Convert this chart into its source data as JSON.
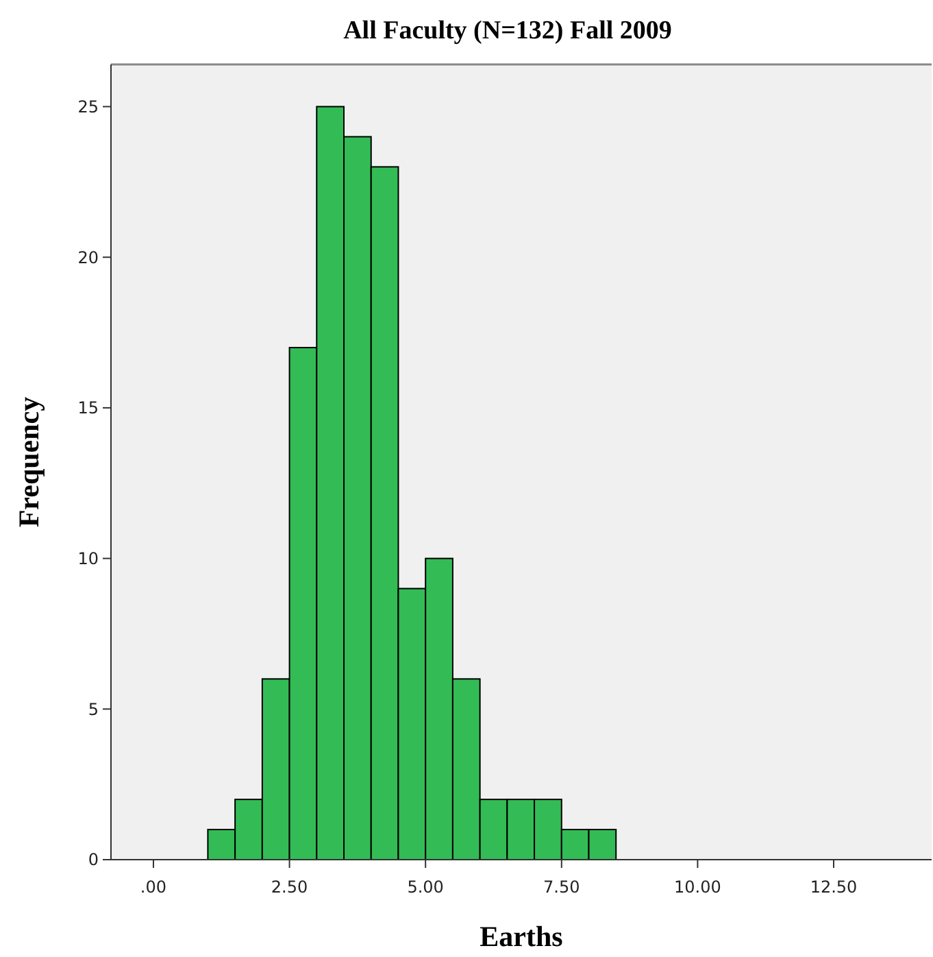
{
  "chart_data": {
    "type": "histogram",
    "title": "All Faculty (N=132) Fall 2009",
    "xlabel": "Earths",
    "ylabel": "Frequency",
    "bins": [
      1.0,
      1.5,
      2.0,
      2.5,
      3.0,
      3.5,
      4.0,
      4.5,
      5.0,
      5.5,
      6.0,
      6.5,
      7.0,
      7.5,
      8.0,
      8.5
    ],
    "values": [
      1,
      2,
      6,
      17,
      25,
      24,
      23,
      9,
      10,
      6,
      2,
      2,
      2,
      1,
      1
    ],
    "color": "#33bc56",
    "xlim": [
      -0.78,
      14.3
    ],
    "xticks": [
      {
        "value": 0,
        "label": ".00"
      },
      {
        "value": 2.5,
        "label": "2.50"
      },
      {
        "value": 5,
        "label": "5.00"
      },
      {
        "value": 7.5,
        "label": "7.50"
      },
      {
        "value": 10,
        "label": "10.00"
      },
      {
        "value": 12.5,
        "label": "12.50"
      }
    ],
    "ylim": [
      0,
      26.4
    ],
    "yticks": [
      0,
      5,
      10,
      15,
      20,
      25
    ],
    "grid": false
  }
}
